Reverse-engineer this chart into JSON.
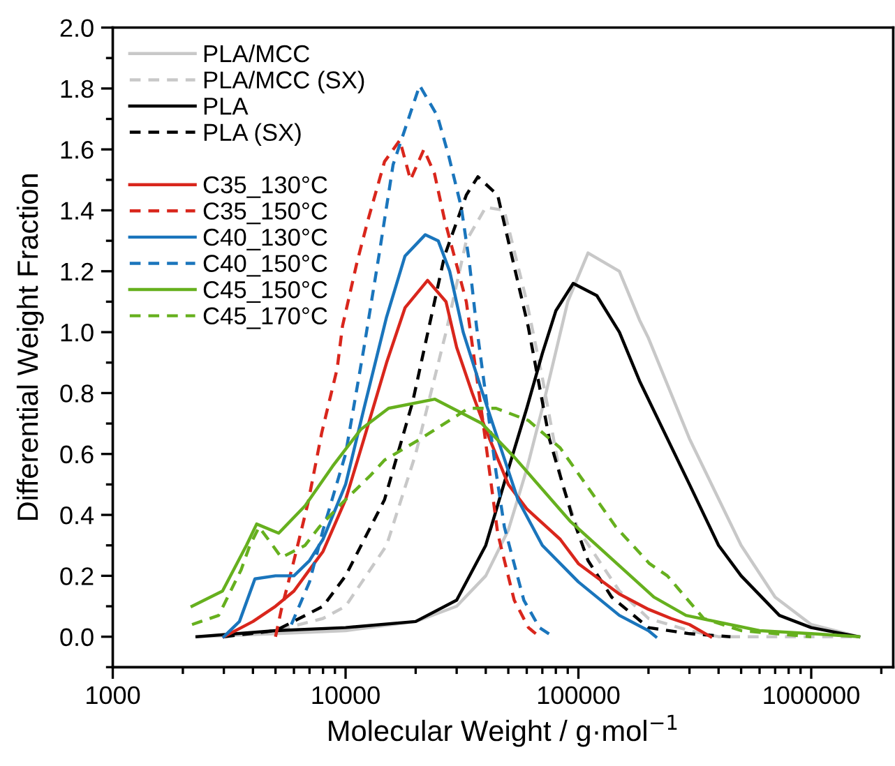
{
  "chart_data": {
    "type": "line",
    "xlabel": "Molecular Weight / g·mol$^{−1}$",
    "ylabel": "Differential Weight Fraction",
    "log": "x",
    "xlim": [
      1000,
      2250000
    ],
    "xticks": [
      1000,
      10000,
      100000,
      1000000
    ],
    "ylim": [
      -0.1,
      2.0
    ],
    "yticks": [
      {
        "value": 0,
        "label": "0.0"
      },
      {
        "value": 0.2,
        "label": "0.2"
      },
      {
        "value": 0.4,
        "label": "0.4"
      },
      {
        "value": 0.6,
        "label": "0.6"
      },
      {
        "value": 0.8,
        "label": "0.8"
      },
      {
        "value": 1.0,
        "label": "1.0"
      },
      {
        "value": 1.2,
        "label": "1.2"
      },
      {
        "value": 1.4,
        "label": "1.4"
      },
      {
        "value": 1.6,
        "label": "1.6"
      },
      {
        "value": 1.8,
        "label": "1.8"
      },
      {
        "value": 2.0,
        "label": "2.0"
      }
    ],
    "grid": false,
    "legend": "top left",
    "marker": "none",
    "series": [
      {
        "name": "PLA/MCC",
        "color": "#c8c8c8",
        "line_style": "solid",
        "x": [
          2300,
          5000,
          10000,
          20000,
          30000,
          40000,
          50000,
          60000,
          70000,
          90000,
          110000,
          150000,
          183000,
          200000,
          300000,
          500000,
          700000,
          1000000,
          1600000
        ],
        "values": [
          0.0,
          0.01,
          0.02,
          0.05,
          0.1,
          0.2,
          0.35,
          0.55,
          0.75,
          1.1,
          1.26,
          1.2,
          1.04,
          0.98,
          0.65,
          0.3,
          0.13,
          0.04,
          0.0
        ]
      },
      {
        "name": "PLA/MCC (SX)",
        "color": "#c8c8c8",
        "line_style": "dashed",
        "x": [
          3000,
          5000,
          8000,
          10000,
          15000,
          20000,
          27000,
          33000,
          40000,
          48000,
          60000,
          70000,
          85000,
          100000,
          150000,
          200000,
          300000,
          400000,
          1600000
        ],
        "values": [
          0.0,
          0.02,
          0.06,
          0.1,
          0.3,
          0.6,
          1.0,
          1.3,
          1.41,
          1.4,
          1.1,
          0.85,
          0.5,
          0.35,
          0.15,
          0.06,
          0.02,
          0.0,
          0.0
        ]
      },
      {
        "name": "PLA",
        "color": "#000000",
        "line_style": "solid",
        "x": [
          2300,
          5000,
          10000,
          20000,
          30000,
          40000,
          50000,
          60000,
          70000,
          80000,
          95000,
          120000,
          150000,
          183000,
          300000,
          400000,
          500000,
          730000,
          1000000,
          1600000
        ],
        "values": [
          0.0,
          0.02,
          0.03,
          0.05,
          0.12,
          0.3,
          0.55,
          0.75,
          0.93,
          1.07,
          1.16,
          1.12,
          1.0,
          0.84,
          0.5,
          0.3,
          0.2,
          0.07,
          0.03,
          0.0
        ]
      },
      {
        "name": "PLA (SX)",
        "color": "#000000",
        "line_style": "dashed",
        "x": [
          3000,
          5000,
          8000,
          10000,
          14700,
          19400,
          26600,
          33000,
          37000,
          45000,
          60800,
          75000,
          94500,
          110000,
          139000,
          200000,
          300000,
          450000
        ],
        "values": [
          0.0,
          0.02,
          0.1,
          0.2,
          0.45,
          0.77,
          1.25,
          1.45,
          1.51,
          1.45,
          1.02,
          0.65,
          0.39,
          0.25,
          0.13,
          0.03,
          0.01,
          0.0
        ]
      },
      {
        "name": "C35_130°C",
        "color": "#d9261c",
        "line_style": "solid",
        "x": [
          3000,
          4000,
          5000,
          6000,
          7000,
          8000,
          10000,
          12000,
          15000,
          18000,
          22500,
          27000,
          30000,
          35000,
          40000,
          50000,
          60000,
          83500,
          100000,
          150000,
          200000,
          250000,
          300000,
          370000
        ],
        "values": [
          0.0,
          0.05,
          0.1,
          0.15,
          0.22,
          0.28,
          0.45,
          0.65,
          0.9,
          1.08,
          1.17,
          1.1,
          0.95,
          0.8,
          0.68,
          0.5,
          0.42,
          0.32,
          0.24,
          0.14,
          0.09,
          0.06,
          0.04,
          0.0
        ]
      },
      {
        "name": "C35_150°C",
        "color": "#d9261c",
        "line_style": "dashed",
        "x": [
          5000,
          5300,
          6000,
          6900,
          7900,
          9200,
          9700,
          11200,
          12500,
          14700,
          17100,
          19000,
          21700,
          24100,
          26600,
          29300,
          33000,
          39000,
          45000,
          53000,
          61000,
          68000
        ],
        "values": [
          0.0,
          0.09,
          0.25,
          0.44,
          0.67,
          0.88,
          1.02,
          1.23,
          1.37,
          1.56,
          1.63,
          1.5,
          1.6,
          1.52,
          1.37,
          1.25,
          1.1,
          0.7,
          0.34,
          0.12,
          0.03,
          0.0
        ]
      },
      {
        "name": "C40_130°C",
        "color": "#1a75bc",
        "line_style": "solid",
        "x": [
          3000,
          3500,
          4080,
          5000,
          6000,
          7000,
          8000,
          10000,
          12000,
          15000,
          18000,
          22000,
          25000,
          28000,
          32000,
          38000,
          45000,
          55000,
          70000,
          100000,
          150000,
          200000,
          215000
        ],
        "values": [
          0.0,
          0.05,
          0.19,
          0.2,
          0.2,
          0.25,
          0.32,
          0.5,
          0.75,
          1.05,
          1.25,
          1.32,
          1.3,
          1.2,
          1.0,
          0.82,
          0.65,
          0.45,
          0.3,
          0.18,
          0.07,
          0.02,
          0.0
        ]
      },
      {
        "name": "C40_150°C",
        "color": "#1a75bc",
        "line_style": "dashed",
        "x": [
          5850,
          7000,
          8000,
          10000,
          12000,
          13900,
          16000,
          20800,
          24800,
          27700,
          31400,
          34000,
          36500,
          44300,
          48100,
          58300,
          68000,
          78000
        ],
        "values": [
          0.04,
          0.18,
          0.35,
          0.6,
          0.95,
          1.25,
          1.55,
          1.81,
          1.71,
          1.58,
          1.41,
          1.23,
          1.02,
          0.54,
          0.36,
          0.12,
          0.03,
          0.0
        ]
      },
      {
        "name": "C45_150°C",
        "color": "#66b01e",
        "line_style": "solid",
        "x": [
          2190,
          2960,
          3750,
          4150,
          5160,
          6700,
          8800,
          11600,
          15300,
          24200,
          38500,
          53000,
          92000,
          211000,
          290000,
          600000,
          1000000,
          1600000
        ],
        "values": [
          0.1,
          0.15,
          0.3,
          0.37,
          0.34,
          0.43,
          0.56,
          0.68,
          0.75,
          0.78,
          0.7,
          0.59,
          0.38,
          0.13,
          0.07,
          0.02,
          0.01,
          0.0
        ]
      },
      {
        "name": "C45_170°C",
        "color": "#66b01e",
        "line_style": "dashed",
        "x": [
          2190,
          2850,
          3560,
          3880,
          4250,
          4650,
          5300,
          6700,
          7700,
          9700,
          12800,
          14700,
          21000,
          33700,
          44300,
          61000,
          83500,
          145000,
          202000,
          241000,
          345000,
          500000,
          1000000
        ],
        "values": [
          0.04,
          0.07,
          0.22,
          0.3,
          0.36,
          0.32,
          0.26,
          0.3,
          0.36,
          0.44,
          0.53,
          0.58,
          0.65,
          0.75,
          0.75,
          0.71,
          0.62,
          0.36,
          0.24,
          0.2,
          0.06,
          0.02,
          0.0
        ]
      }
    ]
  }
}
